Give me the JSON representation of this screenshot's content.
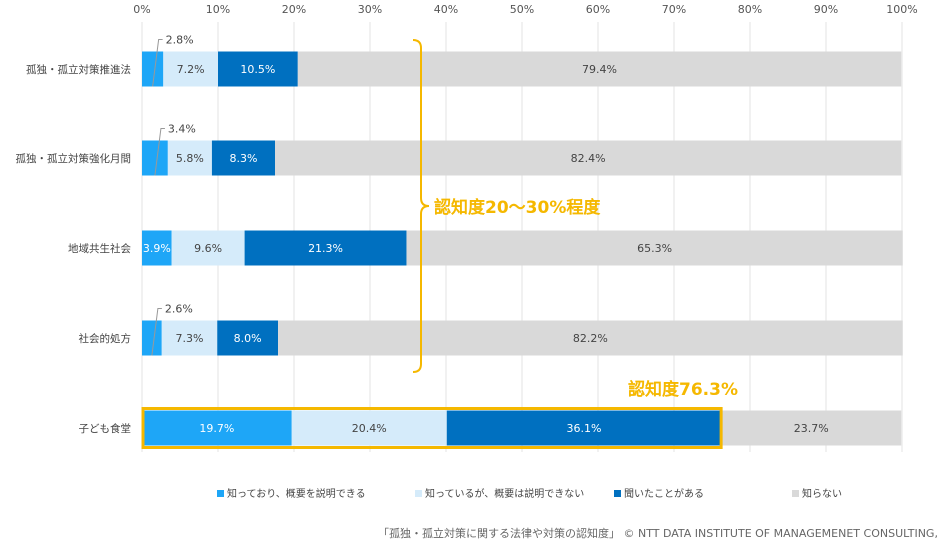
{
  "chart_data": {
    "type": "bar",
    "orientation": "horizontal",
    "stacked": "percent",
    "xlim": [
      0,
      100
    ],
    "x_ticks": [
      "0%",
      "10%",
      "20%",
      "30%",
      "40%",
      "50%",
      "60%",
      "70%",
      "80%",
      "90%",
      "100%"
    ],
    "grid": true,
    "legend_position": "bottom",
    "categories": [
      "孤独・孤立対策推進法",
      "孤独・孤立対策強化月間",
      "地域共生社会",
      "社会的処方",
      "子ども食堂"
    ],
    "series": [
      {
        "name": "知っており、概要を説明できる",
        "color": "#1ea6f7",
        "values": [
          2.8,
          3.4,
          3.9,
          2.6,
          19.7
        ]
      },
      {
        "name": "知っているが、概要は説明できない",
        "color": "#d5ebfa",
        "values": [
          7.2,
          5.8,
          9.6,
          7.3,
          20.4
        ]
      },
      {
        "name": "聞いたことがある",
        "color": "#0070c0",
        "values": [
          10.5,
          8.3,
          21.3,
          8.0,
          36.1
        ]
      },
      {
        "name": "知らない",
        "color": "#d9d9d9",
        "values": [
          79.4,
          82.4,
          65.3,
          82.2,
          23.7
        ]
      }
    ],
    "annotations": {
      "bracket_label": "認知度20～30%程度",
      "highlight_label": "認知度76.3%",
      "accent_color": "#f5b800"
    }
  },
  "footer": "「孤独・孤立対策に関する法律や対策の認知度」 © NTT DATA INSTITUTE OF MANAGEMENET CONSULTING, Inc."
}
